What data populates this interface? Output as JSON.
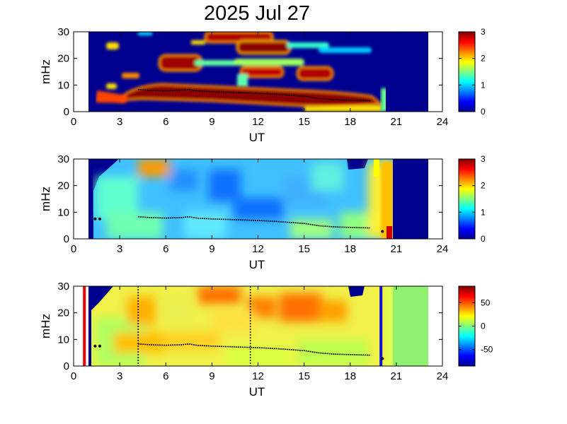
{
  "chart_data": {
    "title": "2025 Jul 27",
    "panels": [
      {
        "type": "heatmap",
        "name": "panel-1",
        "xlabel": "UT",
        "ylabel": "mHz",
        "xlim": [
          0,
          24
        ],
        "ylim": [
          0,
          30
        ],
        "xticks": [
          "0",
          "3",
          "6",
          "9",
          "12",
          "15",
          "18",
          "21",
          "24"
        ],
        "yticks": [
          "0",
          "10",
          "20",
          "30"
        ],
        "data_extent_ut": [
          1,
          23
        ],
        "colorbar": {
          "min": 0,
          "max": 3,
          "ticks": [
            "0",
            "1",
            "2",
            "3"
          ]
        },
        "peak_frequency_ut": [
          4.2,
          5,
          6,
          7,
          7.5,
          8,
          9,
          10,
          11,
          12,
          13,
          14,
          15,
          16,
          17,
          18,
          19.3
        ],
        "peak_frequency_mhz": [
          8.3,
          8,
          7.8,
          8,
          8.3,
          7.8,
          7.5,
          7.3,
          7.1,
          6.9,
          6.6,
          6.2,
          5.8,
          4.9,
          4.5,
          4.3,
          4.1
        ]
      },
      {
        "type": "heatmap",
        "name": "panel-2",
        "xlabel": "UT",
        "ylabel": "mHz",
        "xlim": [
          0,
          24
        ],
        "ylim": [
          0,
          30
        ],
        "xticks": [
          "0",
          "3",
          "6",
          "9",
          "12",
          "15",
          "18",
          "21",
          "24"
        ],
        "yticks": [
          "0",
          "10",
          "20",
          "30"
        ],
        "data_extent_ut": [
          1,
          23
        ],
        "colorbar": {
          "min": 0,
          "max": 3,
          "ticks": [
            "0",
            "1",
            "2",
            "3"
          ]
        },
        "peak_frequency_ut": [
          1.4,
          1.7,
          4.2,
          5,
          6,
          7,
          7.5,
          8,
          9,
          10,
          11,
          12,
          13,
          14,
          15,
          16,
          17,
          18,
          19.3,
          20.1
        ],
        "peak_frequency_mhz": [
          7.5,
          7.5,
          8.3,
          8,
          7.8,
          8,
          8.3,
          7.8,
          7.5,
          7.3,
          7.1,
          6.9,
          6.6,
          6.2,
          5.8,
          4.9,
          4.5,
          4.3,
          4.1,
          2.8
        ]
      },
      {
        "type": "heatmap",
        "name": "panel-3",
        "xlabel": "UT",
        "ylabel": "mHz",
        "xlim": [
          0,
          24
        ],
        "ylim": [
          0,
          30
        ],
        "xticks": [
          "0",
          "3",
          "6",
          "9",
          "12",
          "15",
          "18",
          "21",
          "24"
        ],
        "yticks": [
          "0",
          "10",
          "20",
          "30"
        ],
        "data_extent_ut": [
          1,
          23
        ],
        "colorbar": {
          "min": -85,
          "max": 85,
          "ticks": [
            "50",
            "0",
            "-50"
          ],
          "tick_values": [
            50,
            0,
            -50
          ]
        },
        "markers": [
          {
            "ut": 0.7,
            "color": "#ee0000",
            "style": "solid"
          },
          {
            "ut": 4.2,
            "color": "#000000",
            "style": "dotted"
          },
          {
            "ut": 11.5,
            "color": "#000000",
            "style": "dotted"
          },
          {
            "ut": 20,
            "color": "#1010dd",
            "style": "solid"
          }
        ],
        "peak_frequency_ut": [
          1.4,
          1.7,
          4.2,
          5,
          6,
          7,
          7.5,
          8,
          9,
          10,
          11,
          12,
          13,
          14,
          15,
          16,
          17,
          18,
          19.3,
          20.1
        ],
        "peak_frequency_mhz": [
          7.5,
          7.5,
          8.3,
          8,
          7.8,
          8,
          8.3,
          7.8,
          7.5,
          7.3,
          7.1,
          6.9,
          6.6,
          6.2,
          5.8,
          4.9,
          4.5,
          4.3,
          4.1,
          2.8
        ]
      }
    ]
  },
  "colors": {
    "background_field": "#00008f",
    "peak_line": "#000000"
  }
}
